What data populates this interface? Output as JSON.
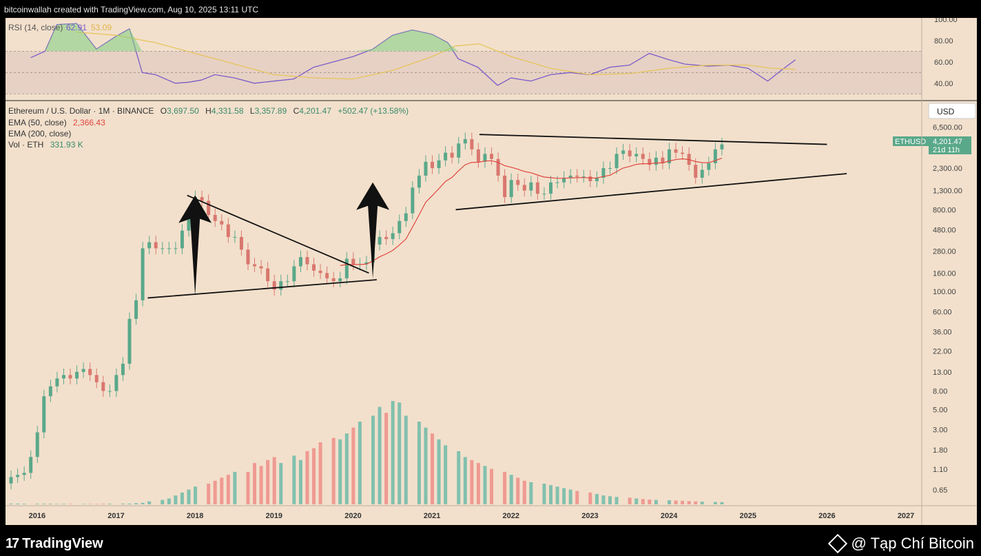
{
  "header": {
    "credit": "bitcoinwallah created with TradingView.com, Aug 10, 2025 13:11 UTC"
  },
  "footer": {
    "brand": "TradingView",
    "watermark": "@ Tạp Chí Bitcoin"
  },
  "legend": {
    "rsi": {
      "label": "RSI (14, close)",
      "rsi_value": "62.91",
      "ma_value": "53.09"
    },
    "symbol": {
      "name": "Ethereum / U.S. Dollar · 1M · BINANCE",
      "o_label": "O",
      "o": "3,697.50",
      "h_label": "H",
      "h": "4,331.58",
      "l_label": "L",
      "l": "3,357.89",
      "c_label": "C",
      "c": "4,201.47",
      "change": "+502.47 (+13.58%)"
    },
    "ema50": {
      "label": "EMA (50, close)",
      "value": "2,366.43"
    },
    "ema200": {
      "label": "EMA (200, close)"
    },
    "vol": {
      "label": "Vol · ETH",
      "value": "331.93 K"
    }
  },
  "price_scale": {
    "currency": "USD",
    "last_label": "ETHUSD",
    "last_price": "4,201.47",
    "countdown": "21d 11h"
  },
  "colors": {
    "background": "#f2e0cc",
    "up": "#5aa88a",
    "down": "#d9776f",
    "rsi_line": "#7b5cc8",
    "rsi_ma": "#e6c45a",
    "ema50": "#e0453f",
    "vol_up": "#82c0ae",
    "vol_down": "#ef9a92"
  },
  "chart_data": [
    {
      "type": "line",
      "name": "RSI panel",
      "ylim": [
        25,
        100
      ],
      "y_ticks": [
        "100.00",
        "80.00",
        "60.00",
        "40.00"
      ],
      "overbought": 70,
      "oversold": 30,
      "series": [
        {
          "name": "RSI (14, close)",
          "x": [
            2015.92,
            2016.1,
            2016.25,
            2016.5,
            2016.75,
            2017.0,
            2017.17,
            2017.33,
            2017.5,
            2017.75,
            2017.92,
            2018.08,
            2018.25,
            2018.5,
            2018.75,
            2019.0,
            2019.25,
            2019.5,
            2019.75,
            2020.0,
            2020.25,
            2020.5,
            2020.75,
            2021.0,
            2021.2,
            2021.33,
            2021.58,
            2021.83,
            2022.0,
            2022.25,
            2022.5,
            2022.75,
            2023.0,
            2023.25,
            2023.5,
            2023.75,
            2024.0,
            2024.2,
            2024.5,
            2024.75,
            2025.0,
            2025.25,
            2025.42,
            2025.6
          ],
          "values": [
            64,
            70,
            95,
            96,
            72,
            84,
            91,
            50,
            48,
            40,
            41,
            43,
            48,
            45,
            40,
            42,
            44,
            55,
            60,
            65,
            72,
            85,
            90,
            86,
            78,
            63,
            55,
            38,
            45,
            42,
            48,
            50,
            48,
            55,
            57,
            68,
            62,
            58,
            56,
            57,
            54,
            42,
            52,
            62
          ]
        },
        {
          "name": "RSI MA",
          "x": [
            2016.5,
            2017.0,
            2017.5,
            2018.0,
            2018.5,
            2019.0,
            2019.5,
            2020.0,
            2020.5,
            2021.0,
            2021.3,
            2021.6,
            2022.0,
            2022.5,
            2023.0,
            2023.5,
            2024.0,
            2024.5,
            2025.0,
            2025.3,
            2025.6
          ],
          "values": [
            88,
            85,
            78,
            68,
            58,
            48,
            45,
            44,
            52,
            65,
            75,
            77,
            65,
            54,
            48,
            49,
            54,
            57,
            57,
            54,
            53
          ]
        }
      ]
    },
    {
      "type": "bar",
      "name": "Ethereum / U.S. Dollar · 1M · BINANCE",
      "yscale": "log",
      "ylim": [
        0.45,
        9000
      ],
      "xlim": [
        2015.6,
        2027.2
      ],
      "x_ticks": [
        "2016",
        "2017",
        "2018",
        "2019",
        "2020",
        "2021",
        "2022",
        "2023",
        "2024",
        "2025",
        "2026",
        "2027"
      ],
      "y_ticks": [
        "6,500.00",
        "4,000.00",
        "2,300.00",
        "1,300.00",
        "800.00",
        "480.00",
        "280.00",
        "160.00",
        "100.00",
        "60.00",
        "36.00",
        "22.00",
        "13.00",
        "8.00",
        "5.00",
        "3.00",
        "1.80",
        "1.10",
        "0.65"
      ],
      "candles_monthly_close": [
        0.9,
        0.95,
        1.0,
        1.5,
        2.8,
        7,
        9,
        11,
        12,
        11,
        13,
        14,
        12,
        10,
        8,
        8,
        12,
        16,
        50,
        80,
        300,
        350,
        300,
        300,
        300,
        300,
        470,
        700,
        1100,
        1000,
        700,
        600,
        550,
        400,
        400,
        290,
        200,
        190,
        180,
        130,
        105,
        130,
        130,
        190,
        240,
        200,
        170,
        160,
        140,
        130,
        140,
        230,
        200,
        200,
        210,
        330,
        400,
        380,
        440,
        600,
        730,
        1400,
        1900,
        2700,
        2300,
        2800,
        3400,
        3000,
        4300,
        4800,
        3700,
        2700,
        3300,
        2900,
        1900,
        1100,
        1700,
        1500,
        1300,
        1600,
        1200,
        1200,
        1600,
        1600,
        1800,
        1900,
        1850,
        1860,
        1650,
        1800,
        2300,
        2300,
        3300,
        3600,
        3100,
        3300,
        2900,
        2500,
        3000,
        2600,
        3700,
        3400,
        3300,
        2500,
        1800,
        2200,
        2600,
        3700,
        4200
      ]
    },
    {
      "type": "bar",
      "name": "Vol · ETH",
      "values_note_k": [
        5,
        5,
        4,
        4,
        4,
        4,
        3,
        3,
        3,
        3,
        3,
        3,
        4,
        4,
        5,
        5,
        8,
        10,
        20,
        30,
        40,
        60,
        80,
        100,
        120,
        140,
        160,
        180,
        200,
        220,
        220,
        280,
        260,
        300,
        320,
        280,
        330,
        300,
        360,
        380,
        420,
        450,
        440,
        480,
        520,
        560,
        600,
        660,
        620,
        700,
        690,
        600,
        560,
        520,
        480,
        440,
        400,
        360,
        320,
        300,
        280,
        260,
        240,
        220,
        200,
        180,
        160,
        150,
        140,
        130,
        120,
        110,
        100,
        90,
        80,
        70,
        60,
        55,
        50,
        45,
        40,
        36,
        32,
        30,
        28,
        26,
        24,
        22,
        20,
        18,
        16,
        15
      ]
    }
  ]
}
